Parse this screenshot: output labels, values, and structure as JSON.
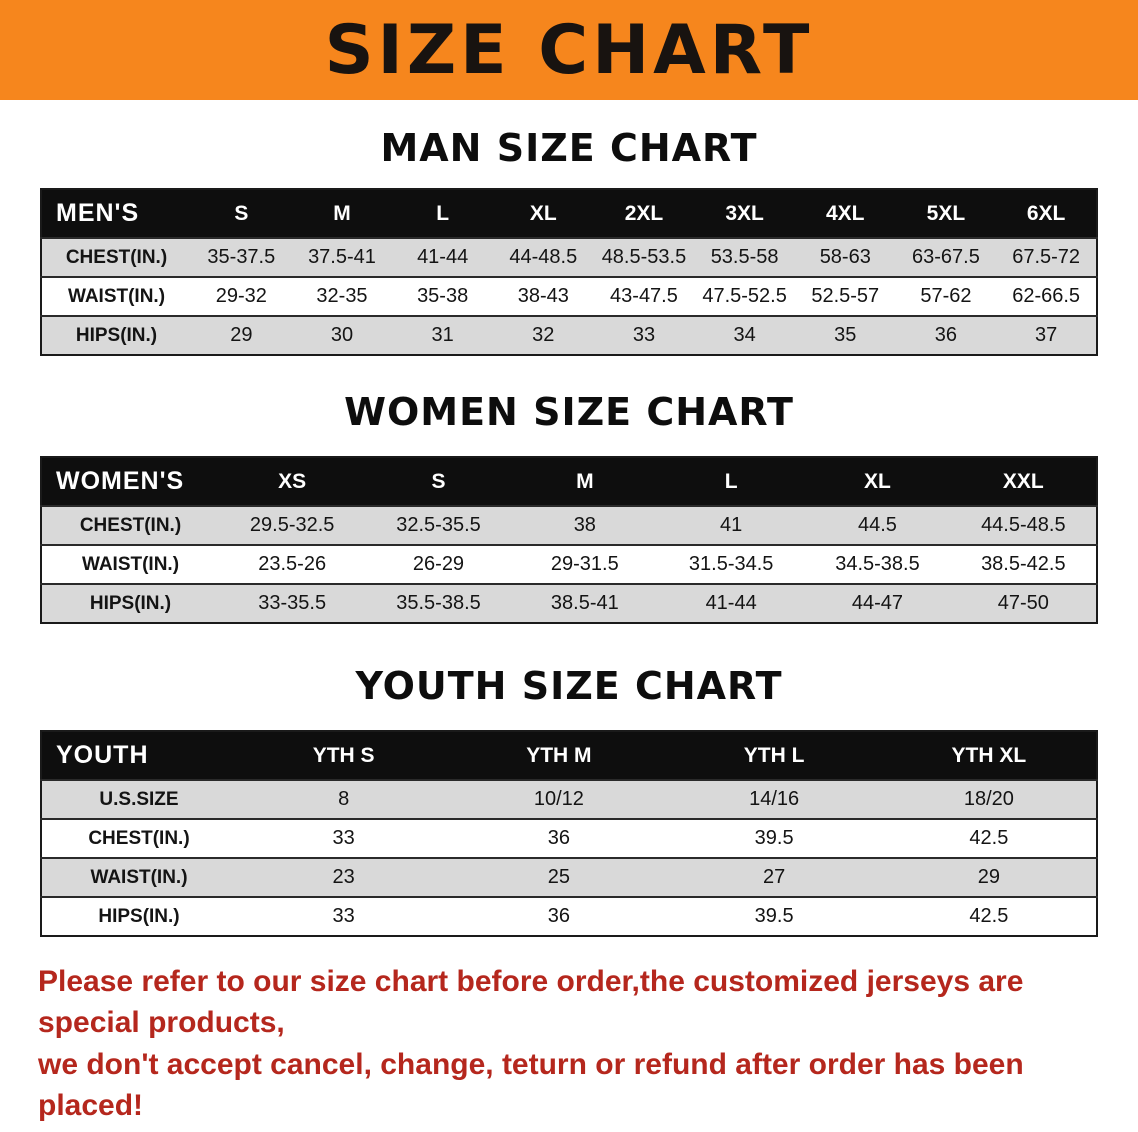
{
  "banner": {
    "title": "SIZE CHART"
  },
  "colors": {
    "banner_orange": "#F6861D",
    "table_header_black": "#0E0E0E",
    "row_stripe_gray": "#D9D9D9",
    "footer_red": "#B5271D"
  },
  "footer": {
    "line1": "Please refer to our size chart before order,the customized jerseys are special products,",
    "line2": "we don't accept cancel, change, teturn or refund after order has been placed!"
  },
  "chart_data": [
    {
      "type": "table",
      "title": "MAN SIZE CHART",
      "header": [
        "MEN'S",
        "S",
        "M",
        "L",
        "XL",
        "2XL",
        "3XL",
        "4XL",
        "5XL",
        "6XL"
      ],
      "rows": [
        [
          "CHEST(IN.)",
          "35-37.5",
          "37.5-41",
          "41-44",
          "44-48.5",
          "48.5-53.5",
          "53.5-58",
          "58-63",
          "63-67.5",
          "67.5-72"
        ],
        [
          "WAIST(IN.)",
          "29-32",
          "32-35",
          "35-38",
          "38-43",
          "43-47.5",
          "47.5-52.5",
          "52.5-57",
          "57-62",
          "62-66.5"
        ],
        [
          "HIPS(IN.)",
          "29",
          "30",
          "31",
          "32",
          "33",
          "34",
          "35",
          "36",
          "37"
        ]
      ]
    },
    {
      "type": "table",
      "title": "WOMEN SIZE CHART",
      "header": [
        "WOMEN'S",
        "XS",
        "S",
        "M",
        "L",
        "XL",
        "XXL"
      ],
      "rows": [
        [
          "CHEST(IN.)",
          "29.5-32.5",
          "32.5-35.5",
          "38",
          "41",
          "44.5",
          "44.5-48.5"
        ],
        [
          "WAIST(IN.)",
          "23.5-26",
          "26-29",
          "29-31.5",
          "31.5-34.5",
          "34.5-38.5",
          "38.5-42.5"
        ],
        [
          "HIPS(IN.)",
          "33-35.5",
          "35.5-38.5",
          "38.5-41",
          "41-44",
          "44-47",
          "47-50"
        ]
      ]
    },
    {
      "type": "table",
      "title": "YOUTH SIZE CHART",
      "header": [
        "YOUTH",
        "YTH S",
        "YTH M",
        "YTH L",
        "YTH XL"
      ],
      "rows": [
        [
          "U.S.SIZE",
          "8",
          "10/12",
          "14/16",
          "18/20"
        ],
        [
          "CHEST(IN.)",
          "33",
          "36",
          "39.5",
          "42.5"
        ],
        [
          "WAIST(IN.)",
          "23",
          "25",
          "27",
          "29"
        ],
        [
          "HIPS(IN.)",
          "33",
          "36",
          "39.5",
          "42.5"
        ]
      ]
    }
  ]
}
